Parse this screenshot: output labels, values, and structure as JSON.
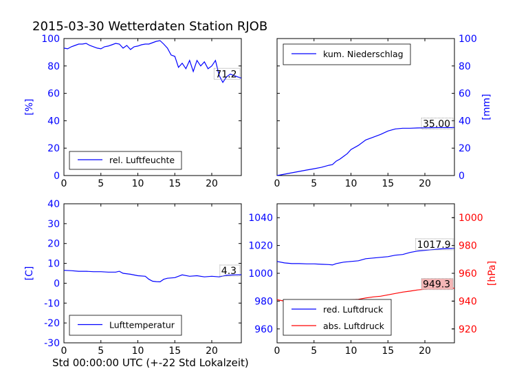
{
  "title": "2015-03-30 Wetterdaten Station RJOB",
  "footer_label": "Std 00:00:00 UTC (+-22 Std Lokalzeit)",
  "colors": {
    "blue": "#0000ff",
    "red": "#ff0000",
    "axis": "#000000",
    "redbox": "#f4b6b6"
  },
  "chart_data": [
    {
      "type": "line",
      "panel": "top-left",
      "xlim": [
        0,
        24
      ],
      "xticks": [
        0,
        5,
        10,
        15,
        20
      ],
      "ylim": [
        0,
        100
      ],
      "yticks": [
        0,
        20,
        40,
        60,
        80,
        100
      ],
      "ylabel": "[%]",
      "legend_position": "bottom-left",
      "series": [
        {
          "name": "rel. Luftfeuchte",
          "color": "#0000ff",
          "x": [
            0,
            0.5,
            1,
            1.5,
            2,
            2.5,
            3,
            3.5,
            4,
            4.5,
            5,
            5.5,
            6,
            6.5,
            7,
            7.5,
            8,
            8.5,
            9,
            9.5,
            10,
            10.5,
            11,
            11.5,
            12,
            12.5,
            13,
            13.5,
            14,
            14.5,
            15,
            15.5,
            16,
            16.5,
            17,
            17.5,
            18,
            18.5,
            19,
            19.5,
            20,
            20.5,
            21,
            21.5,
            22,
            22.5,
            23,
            23.5,
            24
          ],
          "y": [
            93,
            92.5,
            94,
            95,
            96,
            96,
            96.5,
            95,
            94,
            93,
            92.5,
            94,
            94.5,
            95.5,
            96.5,
            96,
            93,
            95,
            92,
            94,
            94.5,
            95.5,
            96,
            96,
            97,
            98,
            98.5,
            96,
            93,
            88,
            87,
            79,
            82,
            78,
            84,
            76,
            84,
            80,
            83,
            78,
            80,
            84,
            73,
            68,
            72,
            74,
            73,
            72,
            71.2
          ]
        }
      ],
      "end_label": "71.2"
    },
    {
      "type": "line",
      "panel": "top-right",
      "xlim": [
        0,
        24
      ],
      "xticks": [
        0,
        5,
        10,
        15,
        20
      ],
      "ylim": [
        0,
        100
      ],
      "yticks": [
        0,
        20,
        40,
        60,
        80,
        100
      ],
      "ylabel": "[mm]",
      "legend_position": "top-left",
      "series": [
        {
          "name": "kum. Niederschlag",
          "color": "#0000ff",
          "x": [
            0,
            1,
            2,
            3,
            4,
            5,
            6,
            7,
            7.5,
            8,
            8.5,
            9,
            9.5,
            10,
            11,
            12,
            13,
            14,
            15,
            16,
            17,
            18,
            19,
            20,
            21,
            22,
            23,
            24
          ],
          "y": [
            0,
            1,
            2,
            3,
            4,
            5,
            6,
            7.5,
            8,
            10.5,
            12,
            14,
            16,
            19,
            22,
            26,
            28,
            30,
            32.5,
            34,
            34.5,
            34.5,
            34.7,
            34.8,
            34.9,
            35,
            35,
            35
          ]
        }
      ],
      "end_label": "35.00"
    },
    {
      "type": "line",
      "panel": "bottom-left",
      "xlim": [
        0,
        24
      ],
      "xticks": [
        0,
        5,
        10,
        15,
        20
      ],
      "ylim": [
        -30,
        40
      ],
      "yticks": [
        -30,
        -20,
        -10,
        0,
        10,
        20,
        30,
        40
      ],
      "ylabel": "[C]",
      "legend_position": "bottom-left",
      "series": [
        {
          "name": "Lufttemperatur",
          "color": "#0000ff",
          "x": [
            0,
            1,
            2,
            3,
            4,
            5,
            6,
            7,
            7.5,
            8,
            9,
            10,
            11,
            11.5,
            12,
            12.5,
            13,
            13.5,
            14,
            15,
            15.5,
            16,
            17,
            18,
            19,
            20,
            21,
            22,
            23,
            24
          ],
          "y": [
            6.5,
            6.3,
            6,
            6,
            5.8,
            5.8,
            5.6,
            5.6,
            6,
            5,
            4.5,
            3.8,
            3.5,
            2,
            1,
            0.8,
            0.7,
            2,
            2.5,
            2.8,
            3.5,
            4.2,
            3.5,
            3.8,
            3.2,
            3.5,
            3.2,
            4,
            4.2,
            4.3
          ]
        }
      ],
      "end_label": "4.3"
    },
    {
      "type": "line",
      "panel": "bottom-right",
      "xlim": [
        0,
        24
      ],
      "xticks": [
        0,
        5,
        10,
        15,
        20
      ],
      "ylim": [
        950,
        1050
      ],
      "yticks": [
        960,
        980,
        1000,
        1020,
        1040
      ],
      "y2lim": [
        910,
        1010
      ],
      "y2ticks": [
        920,
        940,
        960,
        980,
        1000
      ],
      "y2label": "[hPa]",
      "legend_position": "bottom-left",
      "series": [
        {
          "name": "red. Luftdruck",
          "axis": "left",
          "color": "#0000ff",
          "x": [
            0,
            1,
            2,
            3,
            4,
            5,
            6,
            7,
            7.5,
            8,
            9,
            10,
            11,
            12,
            13,
            14,
            15,
            16,
            17,
            18,
            19,
            20,
            21,
            22,
            23,
            24
          ],
          "y": [
            1008.5,
            1007.5,
            1007,
            1007,
            1006.8,
            1006.8,
            1006.5,
            1006.3,
            1006,
            1007,
            1008,
            1008.5,
            1009,
            1010.5,
            1011,
            1011.5,
            1012,
            1013,
            1013.5,
            1015,
            1016,
            1016.5,
            1017,
            1017.5,
            1017.8,
            1017.9
          ]
        },
        {
          "name": "abs. Luftdruck",
          "axis": "right",
          "color": "#ff0000",
          "x": [
            0,
            1,
            2,
            3,
            4,
            5,
            6,
            7,
            7.5,
            8,
            9,
            10,
            11,
            12,
            13,
            14,
            15,
            16,
            17,
            18,
            19,
            20,
            21,
            22,
            23,
            24
          ],
          "y": [
            941,
            940,
            939.5,
            939.3,
            939.2,
            939.2,
            939,
            938.8,
            938.6,
            939.5,
            940.5,
            941,
            941.3,
            942.3,
            943,
            943.5,
            944.5,
            945.5,
            946.5,
            947.2,
            948,
            948.5,
            948.8,
            949,
            949.2,
            949.3
          ]
        }
      ],
      "end_labels": [
        "1017.9",
        "949.3"
      ]
    }
  ]
}
